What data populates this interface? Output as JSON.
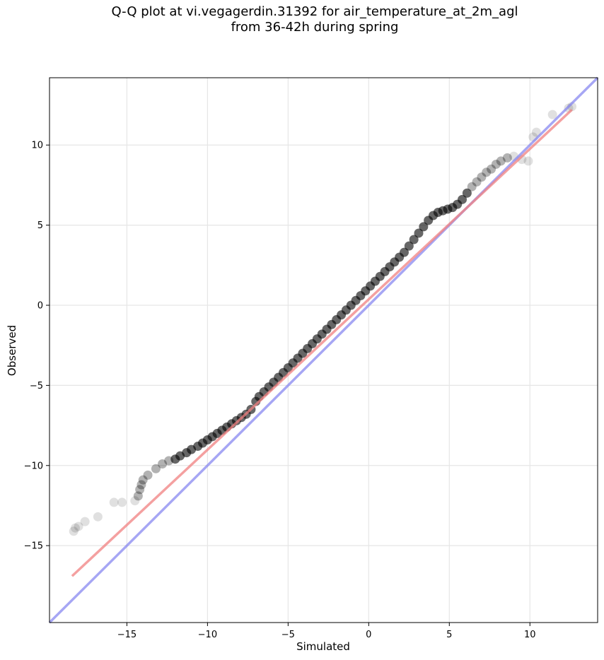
{
  "chart_data": {
    "type": "scatter",
    "title": "Q-Q plot at vi.vegagerdin.31392 for air_temperature_at_2m_agl",
    "subtitle": "from 36-42h during spring",
    "xlabel": "Simulated",
    "ylabel": "Observed",
    "xlim": [
      -19.8,
      14.2
    ],
    "ylim": [
      -19.8,
      14.2
    ],
    "xticks": [
      -15,
      -10,
      -5,
      0,
      5,
      10
    ],
    "yticks": [
      -15,
      -10,
      -5,
      0,
      5,
      10
    ],
    "xtick_labels": [
      "−15",
      "−10",
      "−5",
      "0",
      "5",
      "10"
    ],
    "ytick_labels": [
      "−15",
      "−10",
      "−5",
      "0",
      "5",
      "10"
    ],
    "grid": true,
    "point_color": "#000000",
    "fit_line": {
      "color": "#f08080",
      "x": [
        -18.4,
        12.6
      ],
      "y": [
        -16.9,
        12.2
      ]
    },
    "identity_line": {
      "color": "#8080f0",
      "x": [
        -19.8,
        14.2
      ],
      "y": [
        -19.8,
        14.2
      ]
    },
    "series": [
      {
        "x": [
          -18.3,
          -18.2,
          -18.0,
          -17.6,
          -16.8,
          -15.8,
          -15.3,
          -14.5,
          -14.3,
          -14.2,
          -14.1,
          -14.0,
          -13.7,
          -13.2,
          -12.8,
          -12.4,
          -12.0,
          -11.7,
          -11.3,
          -11.0,
          -10.6,
          -10.3,
          -10.0,
          -9.7,
          -9.4,
          -9.1,
          -8.8,
          -8.5,
          -8.2,
          -7.9,
          -7.6,
          -7.3,
          -7.0,
          -6.8,
          -6.5,
          -6.2,
          -5.9,
          -5.6,
          -5.3,
          -5.0,
          -4.7,
          -4.4,
          -4.1,
          -3.8,
          -3.5,
          -3.2,
          -2.9,
          -2.6,
          -2.3,
          -2.0,
          -1.7,
          -1.4,
          -1.1,
          -0.8,
          -0.5,
          -0.2,
          0.1,
          0.4,
          0.7,
          1.0,
          1.3,
          1.6,
          1.9,
          2.2,
          2.5,
          2.8,
          3.1,
          3.4,
          3.7,
          4.0,
          4.3,
          4.6,
          4.9,
          5.2,
          5.5,
          5.8,
          6.1,
          6.4,
          6.7,
          7.0,
          7.3,
          7.6,
          7.9,
          8.2,
          8.6,
          9.0,
          9.5,
          9.9,
          10.2,
          10.4,
          11.4,
          12.4,
          12.6
        ],
        "y": [
          -14.1,
          -13.9,
          -13.8,
          -13.5,
          -13.2,
          -12.3,
          -12.3,
          -12.2,
          -11.9,
          -11.5,
          -11.2,
          -10.9,
          -10.6,
          -10.2,
          -9.9,
          -9.7,
          -9.6,
          -9.4,
          -9.2,
          -9.0,
          -8.8,
          -8.6,
          -8.4,
          -8.2,
          -8.0,
          -7.8,
          -7.6,
          -7.4,
          -7.2,
          -7.0,
          -6.8,
          -6.5,
          -6.0,
          -5.7,
          -5.4,
          -5.1,
          -4.8,
          -4.5,
          -4.2,
          -3.9,
          -3.6,
          -3.3,
          -3.0,
          -2.7,
          -2.4,
          -2.1,
          -1.8,
          -1.5,
          -1.2,
          -0.9,
          -0.6,
          -0.3,
          0.0,
          0.3,
          0.6,
          0.9,
          1.2,
          1.5,
          1.8,
          2.1,
          2.4,
          2.7,
          3.0,
          3.3,
          3.7,
          4.1,
          4.5,
          4.9,
          5.3,
          5.6,
          5.8,
          5.9,
          6.0,
          6.1,
          6.3,
          6.6,
          7.0,
          7.4,
          7.7,
          8.0,
          8.3,
          8.5,
          8.8,
          9.0,
          9.2,
          9.3,
          9.1,
          9.0,
          10.5,
          10.8,
          11.9,
          12.3,
          12.4
        ]
      }
    ]
  }
}
